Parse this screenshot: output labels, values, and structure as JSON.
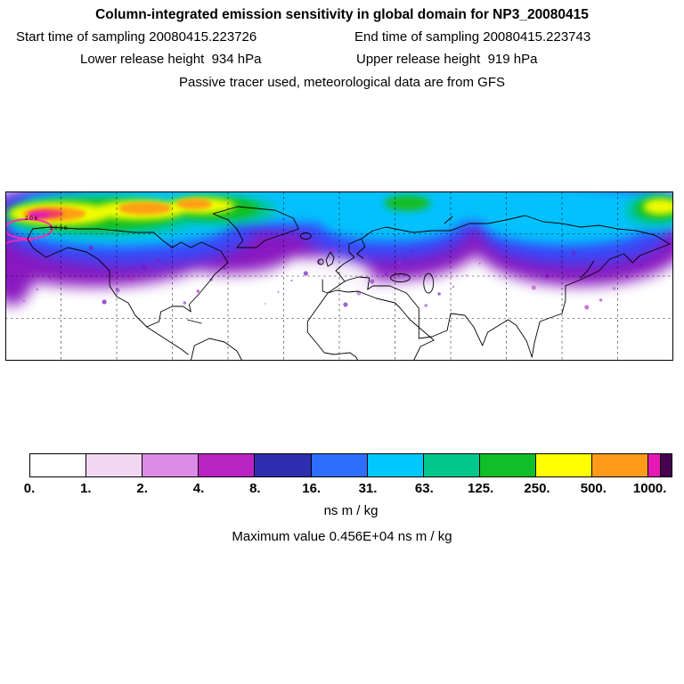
{
  "header": {
    "title": "Column-integrated emission sensitivity in global domain for NP3_20080415",
    "start_time_label": "Start time of sampling 20080415.223726",
    "end_time_label": "End time of sampling 20080415.223743",
    "lower_release_label": "Lower release height  934 hPa",
    "upper_release_label": "Upper release height  919 hPa",
    "tracer_label": "Passive tracer used, meteorological data are from GFS"
  },
  "map": {
    "annotations": [
      {
        "text": "2 0 6"
      },
      {
        "text": "3 0 9 6"
      }
    ]
  },
  "colorbar": {
    "tick_labels": [
      "0.",
      "1.",
      "2.",
      "4.",
      "8.",
      "16.",
      "31.",
      "63.",
      "125.",
      "250.",
      "500.",
      "1000."
    ],
    "colors": [
      "#ffffff",
      "#f2d7f2",
      "#dc8ce6",
      "#b923c3",
      "#2d2daf",
      "#2d6eff",
      "#00c8ff",
      "#00c88c",
      "#0fbe28",
      "#ffff00",
      "#ff9b19",
      "#e619b4",
      "#460050"
    ],
    "widths": [
      1,
      1,
      1,
      1,
      1,
      1,
      1,
      1,
      1,
      1,
      1,
      0.2,
      0.2
    ],
    "units": "ns m / kg"
  },
  "footer": {
    "max_label": "Maximum value  0.456E+04 ns m / kg"
  },
  "chart_data": {
    "type": "heatmap",
    "title": "Column-integrated emission sensitivity in global domain for NP3_20080415",
    "start_time_of_sampling": "20080415.223726",
    "end_time_of_sampling": "20080415.223743",
    "lower_release_height": "934 hPa",
    "upper_release_height": "919 hPa",
    "tracer_note": "Passive tracer used, meteorological data are from GFS",
    "units": "ns m / kg",
    "maximum_value": "0.456E+04",
    "color_levels": [
      0,
      1,
      2,
      4,
      8,
      16,
      31,
      63,
      125,
      250,
      500,
      1000
    ],
    "level_colors": [
      "#ffffff",
      "#f2d7f2",
      "#dc8ce6",
      "#b923c3",
      "#2d2daf",
      "#2d6eff",
      "#00c8ff",
      "#00c88c",
      "#0fbe28",
      "#ffff00",
      "#ff9b19",
      "#e619b4",
      "#460050"
    ],
    "map_domain": {
      "lon_min": -180,
      "lon_max": 180,
      "lat_min": 0,
      "lat_max": 90
    },
    "grid": {
      "lon_spacing_deg": 30,
      "lat_spacing_deg": 22.5,
      "style": "dashed"
    },
    "pattern_summary": "Band of elevated emission sensitivity spans roughly 45-80N around the whole hemisphere; highest values (yellow/orange up to magenta >1000 ns m/kg) over Alaska, northern Canada, Greenland and the far North Pacific near the release region; cyan/blue 8-63 ns m/kg across the North Atlantic, Europe and Siberia; scattered purple <8 ns m/kg at mid-latitudes; white (<1) south of about 35N."
  }
}
